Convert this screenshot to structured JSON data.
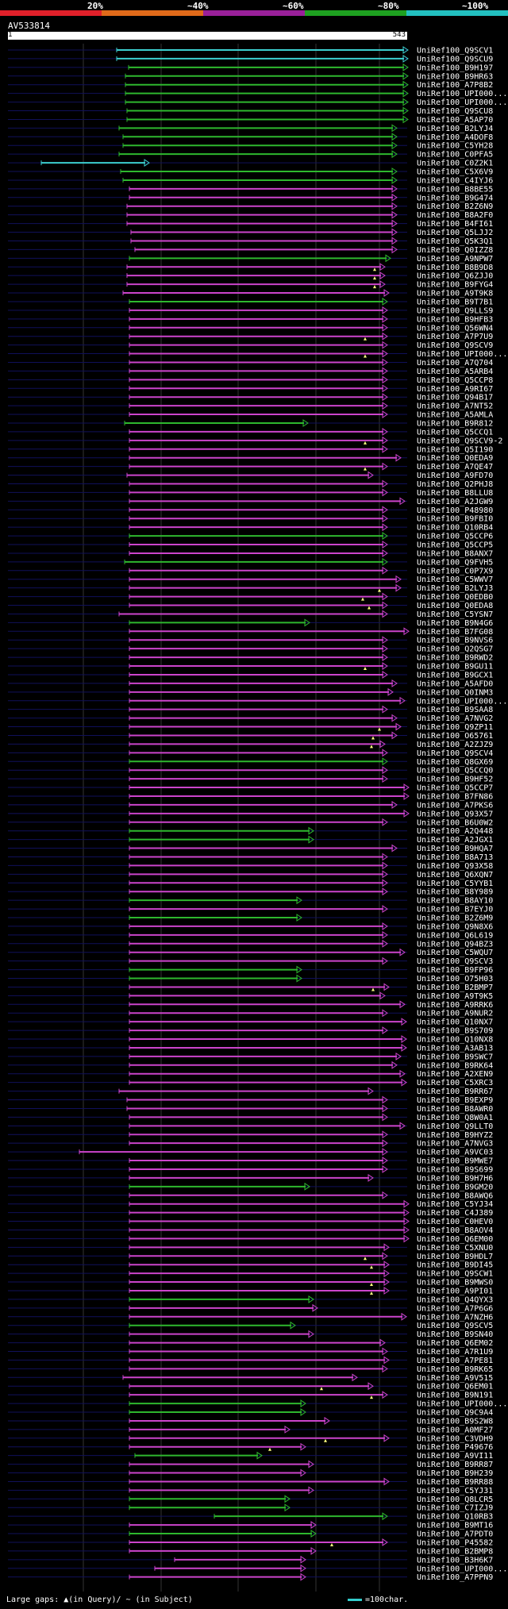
{
  "legend": {
    "marks": [
      "20%",
      "~40%",
      "~60%",
      "~80%",
      "~100%"
    ],
    "colors": [
      "#e0202a",
      "#e06a1a",
      "#9a209a",
      "#1ea020",
      "#22c0c0"
    ]
  },
  "query": {
    "title": "AV533814",
    "start": "1",
    "end": "543"
  },
  "hit_colors": {
    "cyan": "#3ccfd0",
    "green": "#2eb82e",
    "magenta": "#cc44cc"
  },
  "hits": [
    {
      "label": "UniRef100_Q9SCV1",
      "s": 147,
      "e": 514,
      "c": "cyan"
    },
    {
      "label": "UniRef100_Q9SCU9",
      "s": 147,
      "e": 514,
      "c": "cyan"
    },
    {
      "label": "UniRef100_B9H197",
      "s": 162,
      "e": 514,
      "c": "green"
    },
    {
      "label": "UniRef100_B9HR63",
      "s": 158,
      "e": 514,
      "c": "green"
    },
    {
      "label": "UniRef100_A7P8B2",
      "s": 158,
      "e": 514,
      "c": "green"
    },
    {
      "label": "UniRef100_UPI000...",
      "s": 158,
      "e": 514,
      "c": "green"
    },
    {
      "label": "UniRef100_UPI000...",
      "s": 158,
      "e": 514,
      "c": "green"
    },
    {
      "label": "UniRef100_Q9SCU8",
      "s": 160,
      "e": 514,
      "c": "green"
    },
    {
      "label": "UniRef100_A5AP70",
      "s": 160,
      "e": 514,
      "c": "green"
    },
    {
      "label": "UniRef100_B2LYJ4",
      "s": 150,
      "e": 500,
      "c": "green"
    },
    {
      "label": "UniRef100_A4DOF8",
      "s": 155,
      "e": 500,
      "c": "green"
    },
    {
      "label": "UniRef100_C5YH28",
      "s": 155,
      "e": 500,
      "c": "green"
    },
    {
      "label": "UniRef100_C0PFA5",
      "s": 150,
      "e": 500,
      "c": "green"
    },
    {
      "label": "UniRef100_C0Z2K1",
      "s": 52,
      "e": 188,
      "c": "cyan"
    },
    {
      "label": "UniRef100_C5X6V9",
      "s": 152,
      "e": 500,
      "c": "green"
    },
    {
      "label": "UniRef100_C4IYJ6",
      "s": 155,
      "e": 500,
      "c": "green"
    },
    {
      "label": "UniRef100_B8BE55",
      "s": 163,
      "e": 500,
      "c": "magenta"
    },
    {
      "label": "UniRef100_B9G474",
      "s": 163,
      "e": 500,
      "c": "magenta"
    },
    {
      "label": "UniRef100_B2Z6N9",
      "s": 160,
      "e": 500,
      "c": "magenta"
    },
    {
      "label": "UniRef100_B8A2F0",
      "s": 160,
      "e": 500,
      "c": "magenta"
    },
    {
      "label": "UniRef100_B4FI61",
      "s": 160,
      "e": 500,
      "c": "magenta"
    },
    {
      "label": "UniRef100_Q5LJJ2",
      "s": 165,
      "e": 500,
      "c": "magenta"
    },
    {
      "label": "UniRef100_Q5K3Q1",
      "s": 165,
      "e": 500,
      "c": "magenta"
    },
    {
      "label": "UniRef100_Q0IZZ8",
      "s": 170,
      "e": 500,
      "c": "magenta"
    },
    {
      "label": "UniRef100_A9NPW7",
      "s": 163,
      "e": 492,
      "c": "green"
    },
    {
      "label": "UniRef100_B8B9D8",
      "s": 160,
      "e": 485,
      "c": "magenta",
      "gap": 472
    },
    {
      "label": "UniRef100_Q6ZJJ0",
      "s": 160,
      "e": 485,
      "c": "magenta",
      "gap": 472
    },
    {
      "label": "UniRef100_B9FYG4",
      "s": 160,
      "e": 485,
      "c": "magenta",
      "gap": 472
    },
    {
      "label": "UniRef100_A9T9K8",
      "s": 155,
      "e": 490,
      "c": "magenta"
    },
    {
      "label": "UniRef100_B9T7B1",
      "s": 163,
      "e": 488,
      "c": "green"
    },
    {
      "label": "UniRef100_Q9LLS9",
      "s": 163,
      "e": 488,
      "c": "magenta"
    },
    {
      "label": "UniRef100_B9HFB3",
      "s": 163,
      "e": 488,
      "c": "magenta"
    },
    {
      "label": "UniRef100_Q56WN4",
      "s": 163,
      "e": 488,
      "c": "magenta"
    },
    {
      "label": "UniRef100_A7P7U9",
      "s": 163,
      "e": 488,
      "c": "magenta",
      "gap": 460
    },
    {
      "label": "UniRef100_Q9SCV9",
      "s": 163,
      "e": 488,
      "c": "magenta"
    },
    {
      "label": "UniRef100_UPI000...",
      "s": 163,
      "e": 488,
      "c": "magenta",
      "gap": 460
    },
    {
      "label": "UniRef100_A7Q704",
      "s": 163,
      "e": 488,
      "c": "magenta"
    },
    {
      "label": "UniRef100_A5ARB4",
      "s": 163,
      "e": 488,
      "c": "magenta"
    },
    {
      "label": "UniRef100_Q5CCP8",
      "s": 163,
      "e": 488,
      "c": "magenta"
    },
    {
      "label": "UniRef100_A9RI67",
      "s": 163,
      "e": 488,
      "c": "magenta"
    },
    {
      "label": "UniRef100_Q94B17",
      "s": 163,
      "e": 488,
      "c": "magenta"
    },
    {
      "label": "UniRef100_A7NT52",
      "s": 163,
      "e": 488,
      "c": "magenta"
    },
    {
      "label": "UniRef100_A5AMLA",
      "s": 163,
      "e": 488,
      "c": "magenta"
    },
    {
      "label": "UniRef100_B9R812",
      "s": 157,
      "e": 388,
      "c": "green"
    },
    {
      "label": "UniRef100_Q5CCQ1",
      "s": 163,
      "e": 488,
      "c": "magenta"
    },
    {
      "label": "UniRef100_Q9SCV9-2",
      "s": 163,
      "e": 488,
      "c": "magenta",
      "gap": 460
    },
    {
      "label": "UniRef100_Q5I190",
      "s": 163,
      "e": 488,
      "c": "magenta"
    },
    {
      "label": "UniRef100_Q0EDA9",
      "s": 163,
      "e": 505,
      "c": "magenta"
    },
    {
      "label": "UniRef100_A7QE47",
      "s": 163,
      "e": 488,
      "c": "magenta",
      "gap": 460
    },
    {
      "label": "UniRef100_A9FD70",
      "s": 160,
      "e": 470,
      "c": "magenta"
    },
    {
      "label": "UniRef100_Q2PHJ8",
      "s": 163,
      "e": 488,
      "c": "magenta"
    },
    {
      "label": "UniRef100_B8LLU8",
      "s": 163,
      "e": 488,
      "c": "magenta"
    },
    {
      "label": "UniRef100_A2JGW9",
      "s": 163,
      "e": 510,
      "c": "magenta"
    },
    {
      "label": "UniRef100_P48980",
      "s": 163,
      "e": 488,
      "c": "magenta"
    },
    {
      "label": "UniRef100_B9FBI0",
      "s": 163,
      "e": 488,
      "c": "magenta"
    },
    {
      "label": "UniRef100_Q10RB4",
      "s": 163,
      "e": 488,
      "c": "magenta"
    },
    {
      "label": "UniRef100_Q5CCP6",
      "s": 163,
      "e": 488,
      "c": "green"
    },
    {
      "label": "UniRef100_Q5CCP5",
      "s": 163,
      "e": 488,
      "c": "magenta"
    },
    {
      "label": "UniRef100_B8ANX7",
      "s": 163,
      "e": 488,
      "c": "magenta"
    },
    {
      "label": "UniRef100_Q9FVH5",
      "s": 157,
      "e": 488,
      "c": "green"
    },
    {
      "label": "UniRef100_C0P7X9",
      "s": 163,
      "e": 488,
      "c": "magenta"
    },
    {
      "label": "UniRef100_C5WWV7",
      "s": 163,
      "e": 505,
      "c": "magenta"
    },
    {
      "label": "UniRef100_B2LYJ3",
      "s": 163,
      "e": 505,
      "c": "magenta",
      "gap": 478
    },
    {
      "label": "UniRef100_Q0EDB0",
      "s": 163,
      "e": 488,
      "c": "magenta",
      "gap": 457
    },
    {
      "label": "UniRef100_Q0EDA8",
      "s": 163,
      "e": 488,
      "c": "magenta",
      "gap": 465
    },
    {
      "label": "UniRef100_C5YSN7",
      "s": 150,
      "e": 488,
      "c": "magenta"
    },
    {
      "label": "UniRef100_B9N4G6",
      "s": 163,
      "e": 390,
      "c": "green"
    },
    {
      "label": "UniRef100_B7FG08",
      "s": 163,
      "e": 515,
      "c": "magenta"
    },
    {
      "label": "UniRef100_B9NVS6",
      "s": 163,
      "e": 488,
      "c": "magenta"
    },
    {
      "label": "UniRef100_Q2QSG7",
      "s": 163,
      "e": 488,
      "c": "magenta"
    },
    {
      "label": "UniRef100_B9RWD2",
      "s": 163,
      "e": 488,
      "c": "magenta"
    },
    {
      "label": "UniRef100_B9GU11",
      "s": 163,
      "e": 488,
      "c": "magenta",
      "gap": 460
    },
    {
      "label": "UniRef100_B9GCX1",
      "s": 163,
      "e": 488,
      "c": "magenta"
    },
    {
      "label": "UniRef100_A5AFD0",
      "s": 163,
      "e": 500,
      "c": "magenta"
    },
    {
      "label": "UniRef100_Q0INM3",
      "s": 163,
      "e": 495,
      "c": "magenta"
    },
    {
      "label": "UniRef100_UPI000...",
      "s": 163,
      "e": 510,
      "c": "magenta"
    },
    {
      "label": "UniRef100_B9SAA8",
      "s": 163,
      "e": 488,
      "c": "magenta"
    },
    {
      "label": "UniRef100_A7NVG2",
      "s": 163,
      "e": 500,
      "c": "magenta"
    },
    {
      "label": "UniRef100_Q9ZP11",
      "s": 163,
      "e": 505,
      "c": "magenta",
      "gap": 478
    },
    {
      "label": "UniRef100_O65761",
      "s": 163,
      "e": 500,
      "c": "magenta",
      "gap": 470
    },
    {
      "label": "UniRef100_A2ZJZ9",
      "s": 163,
      "e": 485,
      "c": "magenta",
      "gap": 468
    },
    {
      "label": "UniRef100_Q9SCV4",
      "s": 163,
      "e": 488,
      "c": "magenta"
    },
    {
      "label": "UniRef100_Q8GX69",
      "s": 163,
      "e": 488,
      "c": "green"
    },
    {
      "label": "UniRef100_Q5CCQ0",
      "s": 163,
      "e": 488,
      "c": "magenta"
    },
    {
      "label": "UniRef100_B9HF52",
      "s": 163,
      "e": 488,
      "c": "magenta"
    },
    {
      "label": "UniRef100_Q5CCP7",
      "s": 163,
      "e": 515,
      "c": "magenta"
    },
    {
      "label": "UniRef100_B7FN86",
      "s": 163,
      "e": 515,
      "c": "magenta"
    },
    {
      "label": "UniRef100_A7PKS6",
      "s": 163,
      "e": 500,
      "c": "magenta"
    },
    {
      "label": "UniRef100_Q93X57",
      "s": 163,
      "e": 515,
      "c": "magenta"
    },
    {
      "label": "UniRef100_B6U0W2",
      "s": 163,
      "e": 488,
      "c": "magenta"
    },
    {
      "label": "UniRef100_A2Q448",
      "s": 163,
      "e": 395,
      "c": "green"
    },
    {
      "label": "UniRef100_A2JGX1",
      "s": 163,
      "e": 395,
      "c": "green"
    },
    {
      "label": "UniRef100_B9HQA7",
      "s": 163,
      "e": 500,
      "c": "magenta"
    },
    {
      "label": "UniRef100_B8A713",
      "s": 163,
      "e": 488,
      "c": "magenta"
    },
    {
      "label": "UniRef100_Q93X58",
      "s": 163,
      "e": 488,
      "c": "magenta"
    },
    {
      "label": "UniRef100_Q6XQN7",
      "s": 163,
      "e": 488,
      "c": "magenta"
    },
    {
      "label": "UniRef100_C5YYB1",
      "s": 163,
      "e": 488,
      "c": "magenta"
    },
    {
      "label": "UniRef100_B8Y989",
      "s": 163,
      "e": 488,
      "c": "magenta"
    },
    {
      "label": "UniRef100_B8AY10",
      "s": 163,
      "e": 380,
      "c": "green"
    },
    {
      "label": "UniRef100_B7EYJ0",
      "s": 163,
      "e": 488,
      "c": "magenta"
    },
    {
      "label": "UniRef100_B2Z6M9",
      "s": 163,
      "e": 380,
      "c": "green"
    },
    {
      "label": "UniRef100_Q9N8X6",
      "s": 163,
      "e": 488,
      "c": "magenta"
    },
    {
      "label": "UniRef100_Q6L619",
      "s": 163,
      "e": 488,
      "c": "magenta"
    },
    {
      "label": "UniRef100_Q94BZ3",
      "s": 163,
      "e": 488,
      "c": "magenta"
    },
    {
      "label": "UniRef100_C5WQU7",
      "s": 163,
      "e": 510,
      "c": "magenta"
    },
    {
      "label": "UniRef100_Q9SCV3",
      "s": 163,
      "e": 488,
      "c": "magenta"
    },
    {
      "label": "UniRef100_B9FP96",
      "s": 163,
      "e": 380,
      "c": "green"
    },
    {
      "label": "UniRef100_O75H03",
      "s": 163,
      "e": 380,
      "c": "green"
    },
    {
      "label": "UniRef100_B2BMP7",
      "s": 163,
      "e": 490,
      "c": "magenta",
      "gap": 470
    },
    {
      "label": "UniRef100_A9T9K5",
      "s": 163,
      "e": 485,
      "c": "magenta"
    },
    {
      "label": "UniRef100_A9RRK6",
      "s": 163,
      "e": 510,
      "c": "magenta"
    },
    {
      "label": "UniRef100_A9NUR2",
      "s": 163,
      "e": 488,
      "c": "magenta"
    },
    {
      "label": "UniRef100_Q10NX7",
      "s": 163,
      "e": 512,
      "c": "magenta"
    },
    {
      "label": "UniRef100_B9S709",
      "s": 163,
      "e": 488,
      "c": "magenta"
    },
    {
      "label": "UniRef100_Q10NX8",
      "s": 163,
      "e": 512,
      "c": "magenta"
    },
    {
      "label": "UniRef100_A3AB13",
      "s": 163,
      "e": 512,
      "c": "magenta"
    },
    {
      "label": "UniRef100_B9SWC7",
      "s": 163,
      "e": 505,
      "c": "magenta"
    },
    {
      "label": "UniRef100_B9RK64",
      "s": 163,
      "e": 500,
      "c": "magenta"
    },
    {
      "label": "UniRef100_A2XEN9",
      "s": 163,
      "e": 510,
      "c": "magenta"
    },
    {
      "label": "UniRef100_C5XRC3",
      "s": 163,
      "e": 512,
      "c": "magenta"
    },
    {
      "label": "UniRef100_B9RR67",
      "s": 150,
      "e": 470,
      "c": "magenta"
    },
    {
      "label": "UniRef100_B9EXP9",
      "s": 160,
      "e": 488,
      "c": "magenta"
    },
    {
      "label": "UniRef100_B8AWR0",
      "s": 160,
      "e": 488,
      "c": "magenta"
    },
    {
      "label": "UniRef100_Q8W0A1",
      "s": 163,
      "e": 488,
      "c": "magenta"
    },
    {
      "label": "UniRef100_Q9LLT0",
      "s": 163,
      "e": 510,
      "c": "magenta"
    },
    {
      "label": "UniRef100_B9HYZ2",
      "s": 163,
      "e": 488,
      "c": "magenta"
    },
    {
      "label": "UniRef100_A7NVG3",
      "s": 163,
      "e": 488,
      "c": "magenta"
    },
    {
      "label": "UniRef100_A9VC03",
      "s": 100,
      "e": 488,
      "c": "magenta"
    },
    {
      "label": "UniRef100_B9MWE7",
      "s": 163,
      "e": 488,
      "c": "magenta"
    },
    {
      "label": "UniRef100_B9S699",
      "s": 163,
      "e": 488,
      "c": "magenta"
    },
    {
      "label": "UniRef100_B9H7H6",
      "s": 163,
      "e": 470,
      "c": "magenta"
    },
    {
      "label": "UniRef100_B9GM20",
      "s": 163,
      "e": 390,
      "c": "green"
    },
    {
      "label": "UniRef100_B8AWQ6",
      "s": 163,
      "e": 488,
      "c": "magenta"
    },
    {
      "label": "UniRef100_C5YJ34",
      "s": 163,
      "e": 515,
      "c": "magenta"
    },
    {
      "label": "UniRef100_C4J389",
      "s": 163,
      "e": 515,
      "c": "magenta"
    },
    {
      "label": "UniRef100_C0HEV0",
      "s": 163,
      "e": 515,
      "c": "magenta"
    },
    {
      "label": "UniRef100_B8AOV4",
      "s": 163,
      "e": 515,
      "c": "magenta"
    },
    {
      "label": "UniRef100_Q6EM00",
      "s": 163,
      "e": 515,
      "c": "magenta"
    },
    {
      "label": "UniRef100_C5XNU0",
      "s": 163,
      "e": 490,
      "c": "magenta"
    },
    {
      "label": "UniRef100_B9HDL7",
      "s": 163,
      "e": 488,
      "c": "magenta",
      "gap": 460
    },
    {
      "label": "UniRef100_B9DI45",
      "s": 163,
      "e": 490,
      "c": "magenta",
      "gap": 468
    },
    {
      "label": "UniRef100_Q9SCW1",
      "s": 163,
      "e": 490,
      "c": "magenta"
    },
    {
      "label": "UniRef100_B9MWS0",
      "s": 163,
      "e": 490,
      "c": "magenta",
      "gap": 468
    },
    {
      "label": "UniRef100_A9PI01",
      "s": 163,
      "e": 490,
      "c": "magenta",
      "gap": 468
    },
    {
      "label": "UniRef100_Q4QYX3",
      "s": 163,
      "e": 395,
      "c": "green"
    },
    {
      "label": "UniRef100_A7P6G6",
      "s": 163,
      "e": 400,
      "c": "magenta"
    },
    {
      "label": "UniRef100_A7NZH6",
      "s": 163,
      "e": 512,
      "c": "magenta"
    },
    {
      "label": "UniRef100_Q9SCV5",
      "s": 163,
      "e": 372,
      "c": "green"
    },
    {
      "label": "UniRef100_B9SN40",
      "s": 163,
      "e": 395,
      "c": "magenta"
    },
    {
      "label": "UniRef100_Q6EM02",
      "s": 163,
      "e": 485,
      "c": "magenta"
    },
    {
      "label": "UniRef100_A7R1U9",
      "s": 163,
      "e": 488,
      "c": "magenta"
    },
    {
      "label": "UniRef100_A7PE81",
      "s": 163,
      "e": 490,
      "c": "magenta"
    },
    {
      "label": "UniRef100_B9RK65",
      "s": 163,
      "e": 488,
      "c": "magenta"
    },
    {
      "label": "UniRef100_A9V515",
      "s": 155,
      "e": 450,
      "c": "magenta"
    },
    {
      "label": "UniRef100_Q6EM01",
      "s": 163,
      "e": 470,
      "c": "magenta",
      "gap": 405
    },
    {
      "label": "UniRef100_B9N191",
      "s": 163,
      "e": 488,
      "c": "magenta",
      "gap": 468
    },
    {
      "label": "UniRef100_UPI000...",
      "s": 163,
      "e": 385,
      "c": "green"
    },
    {
      "label": "UniRef100_Q9C9A4",
      "s": 163,
      "e": 385,
      "c": "green"
    },
    {
      "label": "UniRef100_B9S2W8",
      "s": 163,
      "e": 415,
      "c": "magenta"
    },
    {
      "label": "UniRef100_A0MF27",
      "s": 163,
      "e": 365,
      "c": "magenta"
    },
    {
      "label": "UniRef100_C3VDH9",
      "s": 163,
      "e": 490,
      "c": "magenta",
      "gap": 410
    },
    {
      "label": "UniRef100_P49676",
      "s": 163,
      "e": 385,
      "c": "magenta",
      "gap": 340
    },
    {
      "label": "UniRef100_A9VI11",
      "s": 170,
      "e": 330,
      "c": "green"
    },
    {
      "label": "UniRef100_B9RR87",
      "s": 163,
      "e": 395,
      "c": "magenta"
    },
    {
      "label": "UniRef100_B9H239",
      "s": 163,
      "e": 385,
      "c": "magenta"
    },
    {
      "label": "UniRef100_B9RR88",
      "s": 163,
      "e": 490,
      "c": "magenta"
    },
    {
      "label": "UniRef100_C5YJ31",
      "s": 163,
      "e": 395,
      "c": "magenta"
    },
    {
      "label": "UniRef100_Q8LCR5",
      "s": 163,
      "e": 365,
      "c": "green"
    },
    {
      "label": "UniRef100_C7IZJ9",
      "s": 163,
      "e": 365,
      "c": "green"
    },
    {
      "label": "UniRef100_Q10RB3",
      "s": 270,
      "e": 488,
      "c": "green"
    },
    {
      "label": "UniRef100_B9MT16",
      "s": 163,
      "e": 398,
      "c": "magenta"
    },
    {
      "label": "UniRef100_A7PDT0",
      "s": 163,
      "e": 398,
      "c": "green"
    },
    {
      "label": "UniRef100_P45582",
      "s": 163,
      "e": 488,
      "c": "magenta",
      "gap": 418
    },
    {
      "label": "UniRef100_B2BMP8",
      "s": 163,
      "e": 398,
      "c": "magenta"
    },
    {
      "label": "UniRef100_B3H6K7",
      "s": 220,
      "e": 385,
      "c": "magenta"
    },
    {
      "label": "UniRef100_UPI000...",
      "s": 195,
      "e": 385,
      "c": "magenta"
    },
    {
      "label": "UniRef100_A7PPN9",
      "s": 163,
      "e": 385,
      "c": "magenta"
    }
  ],
  "footer": {
    "gaps_text": "Large gaps: ▲(in Query)/ ~ (in Subject)",
    "scale_text": "=100char."
  }
}
